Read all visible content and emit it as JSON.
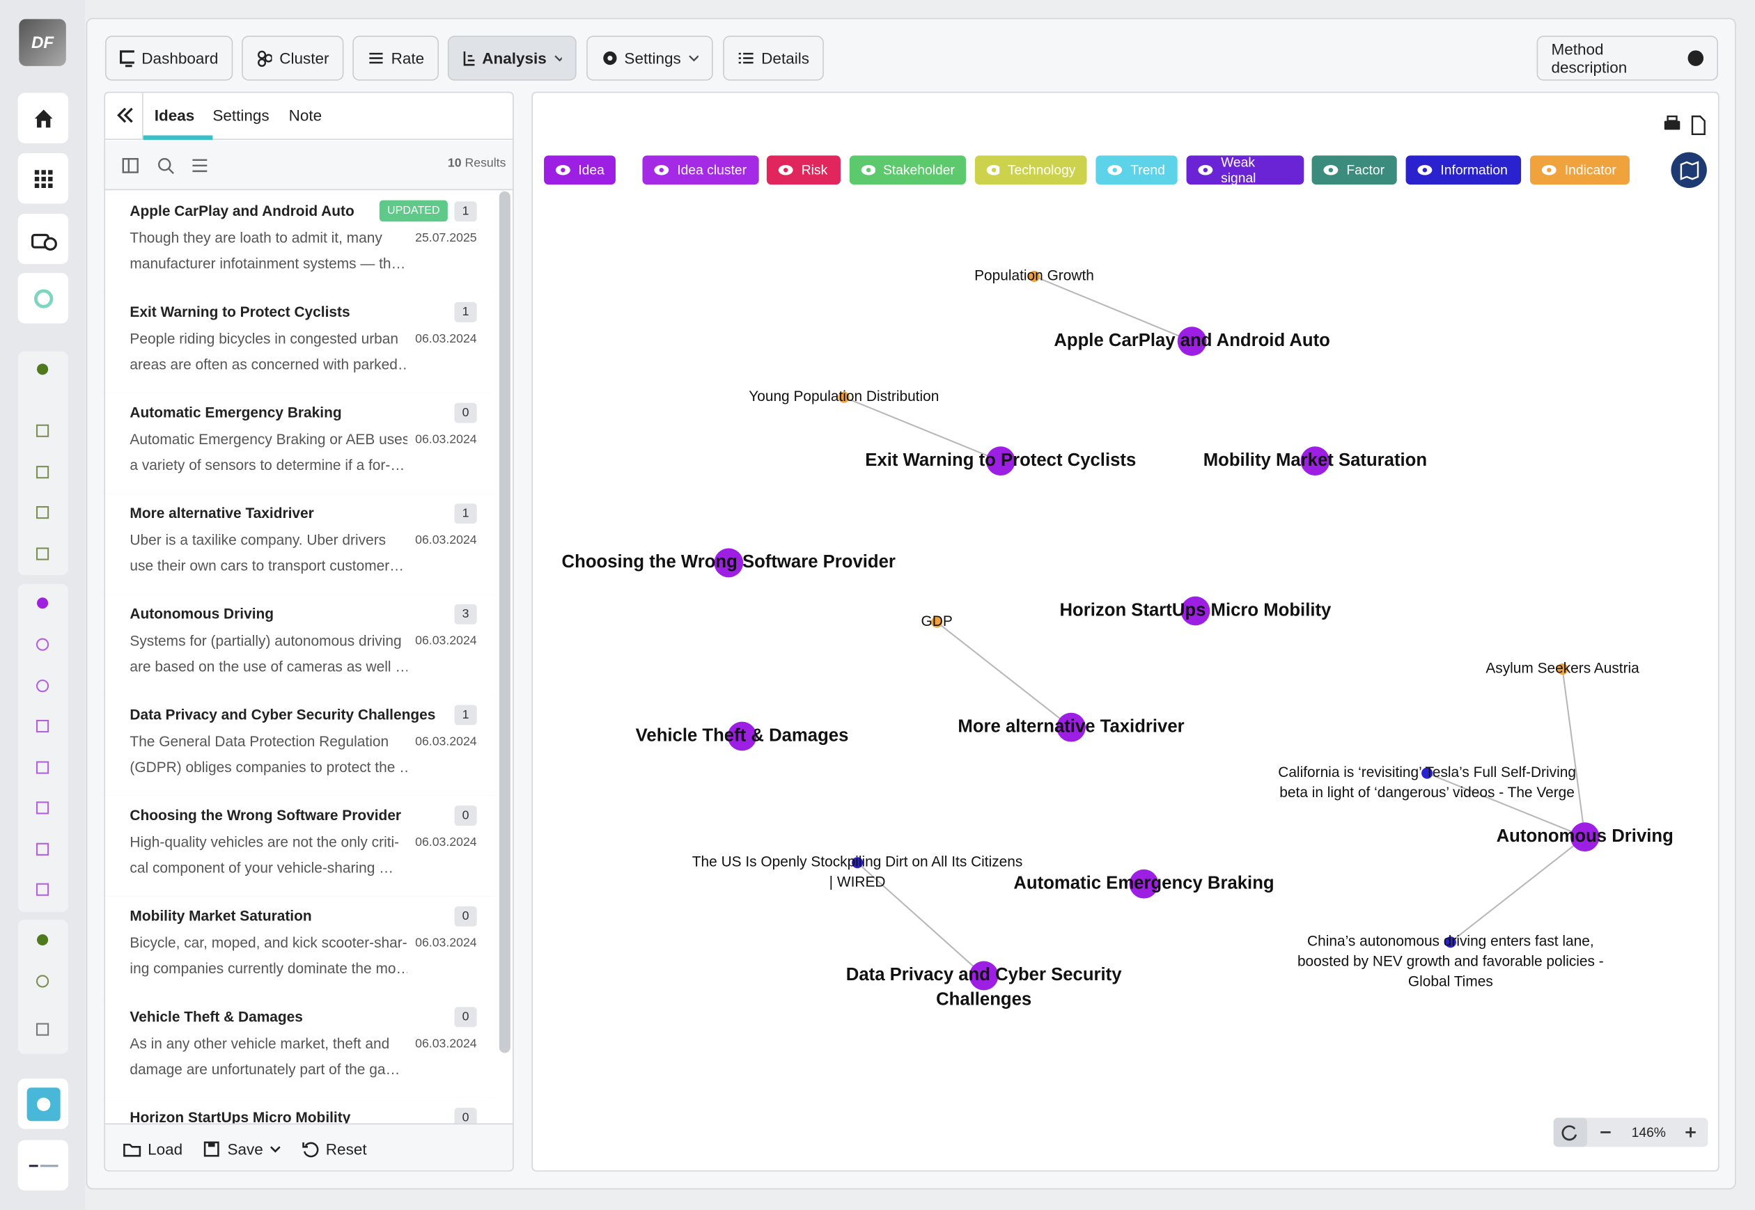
{
  "sidebar": {
    "logo": "DF"
  },
  "nav": {
    "tabs": [
      "Dashboard",
      "Cluster",
      "Rate",
      "Analysis",
      "Settings",
      "Details"
    ],
    "method_description": "Method description"
  },
  "panel": {
    "tabs": [
      "Ideas",
      "Settings",
      "Note"
    ],
    "results_count": "10",
    "results_label": "Results",
    "items": [
      {
        "title": "Apple CarPlay and Android Auto",
        "badge": "UPDATED",
        "count": "1",
        "date": "25.07.2025",
        "excerpt": [
          "Though they are loath to admit it, many",
          "manufacturer infotainment systems — th…"
        ]
      },
      {
        "title": "Exit Warning to Protect Cyclists",
        "count": "1",
        "date": "06.03.2024",
        "excerpt": [
          "People riding bicycles in congested urban",
          "areas are often as concerned with parked…"
        ]
      },
      {
        "title": "Automatic Emergency Braking",
        "count": "0",
        "date": "06.03.2024",
        "excerpt": [
          "Automatic Emergency Braking or AEB uses",
          "a variety of sensors to determine if a for-…"
        ]
      },
      {
        "title": "More alternative Taxidriver",
        "count": "1",
        "date": "06.03.2024",
        "excerpt": [
          "Uber is a taxilike company. Uber drivers",
          "use their own cars to transport customer…"
        ]
      },
      {
        "title": "Autonomous Driving",
        "count": "3",
        "date": "06.03.2024",
        "excerpt": [
          "Systems for (partially) autonomous driving",
          "are based on the use of cameras as well …"
        ]
      },
      {
        "title": "Data Privacy and Cyber Security Challenges",
        "count": "1",
        "date": "06.03.2024",
        "excerpt": [
          "The General Data Protection Regulation",
          "(GDPR) obliges companies to protect the …"
        ]
      },
      {
        "title": "Choosing the Wrong Software Provider",
        "count": "0",
        "date": "06.03.2024",
        "excerpt": [
          "High-quality vehicles are not the only criti-",
          "cal component of your vehicle-sharing …"
        ]
      },
      {
        "title": "Mobility Market Saturation",
        "count": "0",
        "date": "06.03.2024",
        "excerpt": [
          "Bicycle, car, moped, and kick scooter-shar-",
          "ing companies currently dominate the mo…"
        ]
      },
      {
        "title": "Vehicle Theft & Damages",
        "count": "0",
        "date": "06.03.2024",
        "excerpt": [
          "As in any other vehicle market, theft and",
          "damage are unfortunately part of the ga…"
        ]
      },
      {
        "title": "Horizon StartUps Micro Mobility",
        "count": "0"
      }
    ],
    "footer": [
      "Load",
      "Save",
      "Reset"
    ]
  },
  "graph": {
    "legend": [
      {
        "label": "Idea",
        "color": "#9d1fe3"
      },
      {
        "label": "Idea cluster",
        "color": "#a52ae6"
      },
      {
        "label": "Risk",
        "color": "#e0265c"
      },
      {
        "label": "Stakeholder",
        "color": "#5cc96d"
      },
      {
        "label": "Technology",
        "color": "#cdd24c"
      },
      {
        "label": "Trend",
        "color": "#5dd3e9"
      },
      {
        "label": "Weak signal",
        "color": "#6a24d6"
      },
      {
        "label": "Factor",
        "color": "#3b8c7c"
      },
      {
        "label": "Information",
        "color": "#2a22cf"
      },
      {
        "label": "Indicator",
        "color": "#f0a23c"
      }
    ],
    "nodes": [
      {
        "label": [
          "Population Growth"
        ],
        "color": "#f0a23c"
      },
      {
        "label": [
          "Apple CarPlay and Android Auto"
        ],
        "color": "#9d1fe3"
      },
      {
        "label": [
          "Young Population Distribution"
        ],
        "color": "#f0a23c"
      },
      {
        "label": [
          "Exit Warning to Protect Cyclists"
        ],
        "color": "#9d1fe3"
      },
      {
        "label": [
          "Mobility Market Saturation"
        ],
        "color": "#9d1fe3"
      },
      {
        "label": [
          "Choosing the Wrong Software Provider"
        ],
        "color": "#9d1fe3"
      },
      {
        "label": [
          "Horizon StartUps Micro Mobility"
        ],
        "color": "#9d1fe3"
      },
      {
        "label": [
          "GDP"
        ],
        "color": "#f0a23c"
      },
      {
        "label": [
          "Asylum Seekers Austria"
        ],
        "color": "#f0a23c"
      },
      {
        "label": [
          "Vehicle Theft & Damages"
        ],
        "color": "#9d1fe3"
      },
      {
        "label": [
          "More alternative Taxidriver"
        ],
        "color": "#9d1fe3"
      },
      {
        "label": [
          "California is ‘revisiting’ Tesla’s Full Self-Driving",
          "beta in light of ‘dangerous’ videos - The Verge"
        ],
        "color": "#2a22cf"
      },
      {
        "label": [
          "Autonomous Driving"
        ],
        "color": "#9d1fe3"
      },
      {
        "label": [
          "The US Is Openly Stockpiling Dirt on All Its Citizens",
          "| WIRED"
        ],
        "color": "#2a22cf"
      },
      {
        "label": [
          "Automatic Emergency Braking"
        ],
        "color": "#9d1fe3"
      },
      {
        "label": [
          "China’s autonomous driving enters fast lane,",
          "boosted by NEV growth and favorable policies -",
          "Global Times"
        ],
        "color": "#2a22cf"
      },
      {
        "label": [
          "Data Privacy and Cyber Security",
          "Challenges"
        ],
        "color": "#9d1fe3"
      }
    ],
    "zoom": "146%"
  }
}
